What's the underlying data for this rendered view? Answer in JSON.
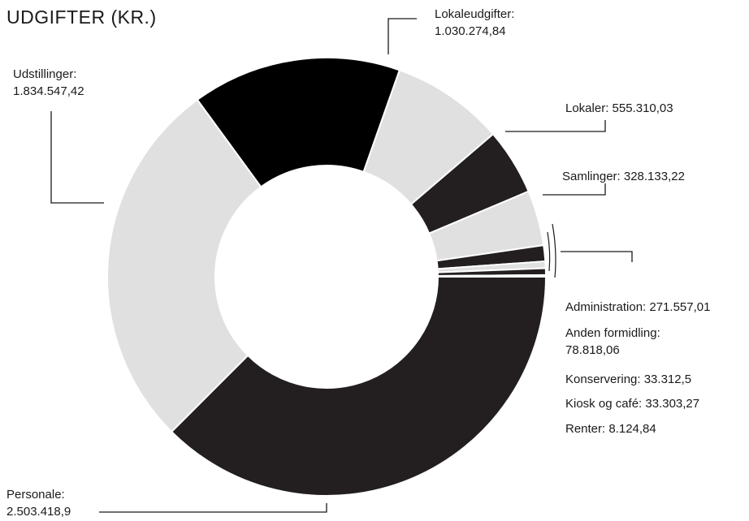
{
  "chart_data": {
    "type": "pie",
    "title": "UDGIFTER (KR.)",
    "slices": [
      {
        "name": "Personale",
        "value": 2503418.9,
        "name_text": "Personale:",
        "value_text": "2.503.418,9",
        "color": "#231f20"
      },
      {
        "name": "Udstillinger",
        "value": 1834547.42,
        "name_text": "Udstillinger:",
        "value_text": "1.834.547,42",
        "color": "#e0e0e0"
      },
      {
        "name": "Lokaleudgifter",
        "value": 1030274.84,
        "name_text": "Lokaleudgifter:",
        "value_text": "1.030.274,84",
        "color": "#000000"
      },
      {
        "name": "Lokaler",
        "value": 555310.03,
        "label_text": "Lokaler: 555.310,03",
        "color": "#e0e0e0"
      },
      {
        "name": "Samlinger",
        "value": 328133.22,
        "label_text": "Samlinger: 328.133,22",
        "color": "#231f20"
      },
      {
        "name": "Administration",
        "value": 271557.01,
        "label_text": "Administration: 271.557,01",
        "color": "#e0e0e0"
      },
      {
        "name": "Anden formidling",
        "value": 78818.06,
        "name_text": "Anden formidling:",
        "value_text": "78.818,06",
        "color": "#231f20"
      },
      {
        "name": "Konservering",
        "value": 33312.5,
        "label_text": "Konservering: 33.312,5",
        "color": "#e0e0e0"
      },
      {
        "name": "Kiosk og café",
        "value": 33303.27,
        "label_text": "Kiosk og café: 33.303,27",
        "color": "#231f20"
      },
      {
        "name": "Renter",
        "value": 8124.84,
        "label_text": "Renter: 8.124,84",
        "color": "#e0e0e0"
      }
    ]
  }
}
